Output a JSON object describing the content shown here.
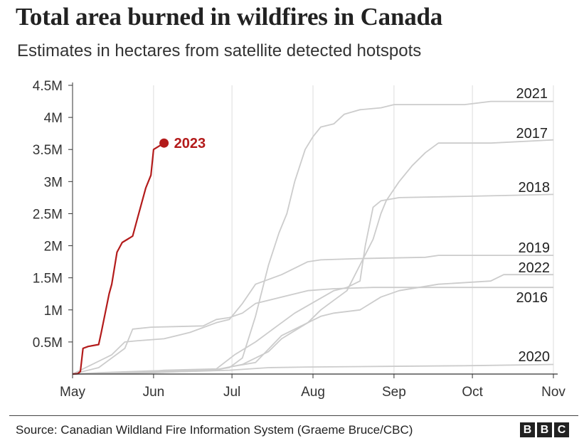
{
  "header": {
    "title": "Total area burned in wildfires in Canada",
    "subtitle": "Estimates in hectares from satellite detected hotspots"
  },
  "footer": {
    "source": "Source: Canadian Wildland Fire Information System (Graeme Bruce/CBC)",
    "logo_letters": [
      "B",
      "B",
      "C"
    ]
  },
  "colors": {
    "highlight": "#b31b1b",
    "past_years": "#cccccc",
    "grid": "#dddddd",
    "axis": "#333333"
  },
  "chart_data": {
    "type": "line",
    "title": "Total area burned in wildfires in Canada",
    "subtitle": "Estimates in hectares from satellite detected hotspots",
    "xlabel": "",
    "ylabel": "",
    "x_unit": "date (May 1 - Nov 1)",
    "xlim": [
      "May 1",
      "Nov 1"
    ],
    "ylim": [
      0,
      4500000
    ],
    "x_ticks": [
      {
        "label": "May",
        "day": 0
      },
      {
        "label": "Jun",
        "day": 31
      },
      {
        "label": "Jul",
        "day": 61
      },
      {
        "label": "Aug",
        "day": 92
      },
      {
        "label": "Sep",
        "day": 123
      },
      {
        "label": "Oct",
        "day": 153
      },
      {
        "label": "Nov",
        "day": 184
      }
    ],
    "y_ticks": [
      {
        "label": "0.5M",
        "value": 500000
      },
      {
        "label": "1M",
        "value": 1000000
      },
      {
        "label": "1.5M",
        "value": 1500000
      },
      {
        "label": "2M",
        "value": 2000000
      },
      {
        "label": "2.5M",
        "value": 2500000
      },
      {
        "label": "3M",
        "value": 3000000
      },
      {
        "label": "3.5M",
        "value": 3500000
      },
      {
        "label": "4M",
        "value": 4000000
      },
      {
        "label": "4.5M",
        "value": 4500000
      }
    ],
    "grid": "vertical at month ticks",
    "legend": "direct labels at line ends",
    "series": [
      {
        "name": "2023",
        "highlight": true,
        "end_marker": true,
        "points": [
          [
            0,
            0
          ],
          [
            2,
            5000
          ],
          [
            3,
            40000
          ],
          [
            4,
            400000
          ],
          [
            6,
            430000
          ],
          [
            10,
            460000
          ],
          [
            11,
            650000
          ],
          [
            14,
            1250000
          ],
          [
            15,
            1400000
          ],
          [
            17,
            1900000
          ],
          [
            19,
            2050000
          ],
          [
            21,
            2100000
          ],
          [
            23,
            2150000
          ],
          [
            25,
            2450000
          ],
          [
            28,
            2900000
          ],
          [
            30,
            3100000
          ],
          [
            31,
            3500000
          ],
          [
            35,
            3600000
          ]
        ]
      },
      {
        "name": "2021",
        "points": [
          [
            0,
            0
          ],
          [
            10,
            20000
          ],
          [
            30,
            50000
          ],
          [
            55,
            70000
          ],
          [
            60,
            100000
          ],
          [
            65,
            250000
          ],
          [
            70,
            900000
          ],
          [
            75,
            1700000
          ],
          [
            79,
            2200000
          ],
          [
            82,
            2500000
          ],
          [
            85,
            3000000
          ],
          [
            89,
            3500000
          ],
          [
            92,
            3700000
          ],
          [
            95,
            3850000
          ],
          [
            100,
            3900000
          ],
          [
            104,
            4050000
          ],
          [
            110,
            4120000
          ],
          [
            118,
            4150000
          ],
          [
            123,
            4200000
          ],
          [
            150,
            4200000
          ],
          [
            160,
            4250000
          ],
          [
            184,
            4250000
          ]
        ]
      },
      {
        "name": "2017",
        "points": [
          [
            0,
            0
          ],
          [
            30,
            20000
          ],
          [
            55,
            60000
          ],
          [
            60,
            110000
          ],
          [
            70,
            180000
          ],
          [
            80,
            600000
          ],
          [
            90,
            800000
          ],
          [
            95,
            1000000
          ],
          [
            100,
            1150000
          ],
          [
            105,
            1300000
          ],
          [
            110,
            1700000
          ],
          [
            115,
            2100000
          ],
          [
            118,
            2500000
          ],
          [
            120,
            2700000
          ],
          [
            125,
            3000000
          ],
          [
            130,
            3250000
          ],
          [
            135,
            3450000
          ],
          [
            140,
            3600000
          ],
          [
            160,
            3600000
          ],
          [
            184,
            3650000
          ]
        ]
      },
      {
        "name": "2018",
        "points": [
          [
            0,
            0
          ],
          [
            25,
            20000
          ],
          [
            35,
            60000
          ],
          [
            55,
            80000
          ],
          [
            62,
            300000
          ],
          [
            70,
            500000
          ],
          [
            80,
            800000
          ],
          [
            85,
            950000
          ],
          [
            100,
            1300000
          ],
          [
            105,
            1350000
          ],
          [
            110,
            1450000
          ],
          [
            112,
            2000000
          ],
          [
            115,
            2600000
          ],
          [
            118,
            2700000
          ],
          [
            125,
            2750000
          ],
          [
            150,
            2770000
          ],
          [
            184,
            2800000
          ]
        ]
      },
      {
        "name": "2019",
        "points": [
          [
            0,
            0
          ],
          [
            10,
            200000
          ],
          [
            15,
            300000
          ],
          [
            20,
            500000
          ],
          [
            25,
            520000
          ],
          [
            35,
            550000
          ],
          [
            45,
            650000
          ],
          [
            55,
            800000
          ],
          [
            60,
            850000
          ],
          [
            65,
            1100000
          ],
          [
            70,
            1400000
          ],
          [
            80,
            1550000
          ],
          [
            90,
            1750000
          ],
          [
            95,
            1780000
          ],
          [
            110,
            1800000
          ],
          [
            135,
            1820000
          ],
          [
            140,
            1850000
          ],
          [
            184,
            1850000
          ]
        ]
      },
      {
        "name": "2022",
        "points": [
          [
            0,
            0
          ],
          [
            20,
            30000
          ],
          [
            40,
            50000
          ],
          [
            55,
            70000
          ],
          [
            65,
            150000
          ],
          [
            75,
            350000
          ],
          [
            80,
            550000
          ],
          [
            90,
            800000
          ],
          [
            95,
            900000
          ],
          [
            100,
            950000
          ],
          [
            110,
            1000000
          ],
          [
            118,
            1200000
          ],
          [
            125,
            1300000
          ],
          [
            140,
            1400000
          ],
          [
            160,
            1450000
          ],
          [
            165,
            1550000
          ],
          [
            184,
            1550000
          ]
        ]
      },
      {
        "name": "2016",
        "points": [
          [
            0,
            0
          ],
          [
            10,
            100000
          ],
          [
            20,
            400000
          ],
          [
            23,
            700000
          ],
          [
            30,
            730000
          ],
          [
            50,
            750000
          ],
          [
            55,
            850000
          ],
          [
            60,
            880000
          ],
          [
            65,
            950000
          ],
          [
            70,
            1100000
          ],
          [
            80,
            1200000
          ],
          [
            90,
            1300000
          ],
          [
            100,
            1330000
          ],
          [
            115,
            1350000
          ],
          [
            184,
            1350000
          ]
        ]
      },
      {
        "name": "2020",
        "points": [
          [
            0,
            0
          ],
          [
            15,
            20000
          ],
          [
            30,
            30000
          ],
          [
            45,
            40000
          ],
          [
            60,
            60000
          ],
          [
            75,
            100000
          ],
          [
            90,
            110000
          ],
          [
            120,
            120000
          ],
          [
            150,
            130000
          ],
          [
            184,
            150000
          ]
        ]
      }
    ]
  }
}
